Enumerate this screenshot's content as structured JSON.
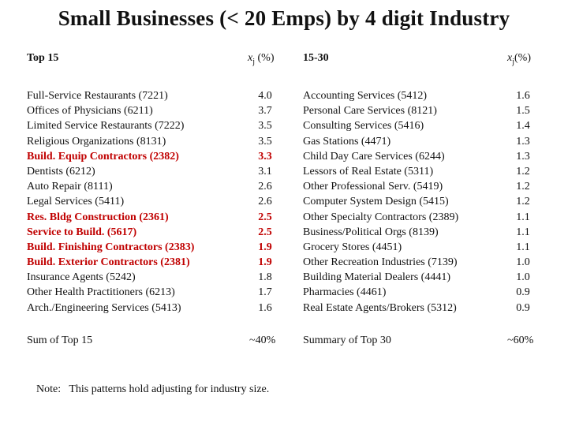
{
  "title": "Small Businesses (< 20 Emps) by 4 digit Industry",
  "colors": {
    "highlight": "#c00000"
  },
  "left": {
    "header": "Top 15",
    "col_header_var": "x",
    "col_header_sub": "j",
    "col_header_unit": " (%)",
    "rows": [
      {
        "name": "Full-Service Restaurants (7221)",
        "value": "4.0",
        "highlight": false
      },
      {
        "name": "Offices of Physicians (6211)",
        "value": "3.7",
        "highlight": false
      },
      {
        "name": "Limited Service Restaurants (7222)",
        "value": "3.5",
        "highlight": false
      },
      {
        "name": "Religious Organizations (8131)",
        "value": "3.5",
        "highlight": false
      },
      {
        "name": "Build. Equip Contractors (2382)",
        "value": "3.3",
        "highlight": true
      },
      {
        "name": "Dentists (6212)",
        "value": "3.1",
        "highlight": false
      },
      {
        "name": "Auto Repair (8111)",
        "value": "2.6",
        "highlight": false
      },
      {
        "name": "Legal Services (5411)",
        "value": "2.6",
        "highlight": false
      },
      {
        "name": "Res. Bldg Construction (2361)",
        "value": "2.5",
        "highlight": true
      },
      {
        "name": "Service to Build. (5617)",
        "value": "2.5",
        "highlight": true
      },
      {
        "name": "Build. Finishing Contractors (2383)",
        "value": "1.9",
        "highlight": true
      },
      {
        "name": "Build. Exterior Contractors (2381)",
        "value": "1.9",
        "highlight": true
      },
      {
        "name": "Insurance Agents (5242)",
        "value": "1.8",
        "highlight": false
      },
      {
        "name": "Other Health Practitioners (6213)",
        "value": "1.7",
        "highlight": false
      },
      {
        "name": "Arch./Engineering Services (5413)",
        "value": "1.6",
        "highlight": false
      }
    ],
    "sum_label": "Sum of Top 15",
    "sum_value": "~40%"
  },
  "right": {
    "header": "15-30",
    "col_header_var": "x",
    "col_header_sub": "j",
    "col_header_unit": "(%)",
    "rows": [
      {
        "name": "Accounting Services (5412)",
        "value": "1.6"
      },
      {
        "name": "Personal Care Services (8121)",
        "value": "1.5"
      },
      {
        "name": "Consulting Services (5416)",
        "value": "1.4"
      },
      {
        "name": "Gas Stations (4471)",
        "value": "1.3"
      },
      {
        "name": "Child Day Care Services (6244)",
        "value": "1.3"
      },
      {
        "name": "Lessors of Real Estate (5311)",
        "value": "1.2"
      },
      {
        "name": "Other Professional Serv. (5419)",
        "value": "1.2"
      },
      {
        "name": "Computer System Design (5415)",
        "value": "1.2"
      },
      {
        "name": "Other Specialty Contractors (2389)",
        "value": "1.1"
      },
      {
        "name": "Business/Political Orgs (8139)",
        "value": "1.1"
      },
      {
        "name": "Grocery Stores (4451)",
        "value": "1.1"
      },
      {
        "name": "Other Recreation Industries (7139)",
        "value": "1.0"
      },
      {
        "name": "Building Material Dealers (4441)",
        "value": "1.0"
      },
      {
        "name": "Pharmacies (4461)",
        "value": "0.9"
      },
      {
        "name": "Real Estate Agents/Brokers (5312)",
        "value": "0.9"
      }
    ],
    "sum_label": "Summary of Top 30",
    "sum_value": "~60%"
  },
  "note": "Note:   This patterns hold adjusting for industry size."
}
